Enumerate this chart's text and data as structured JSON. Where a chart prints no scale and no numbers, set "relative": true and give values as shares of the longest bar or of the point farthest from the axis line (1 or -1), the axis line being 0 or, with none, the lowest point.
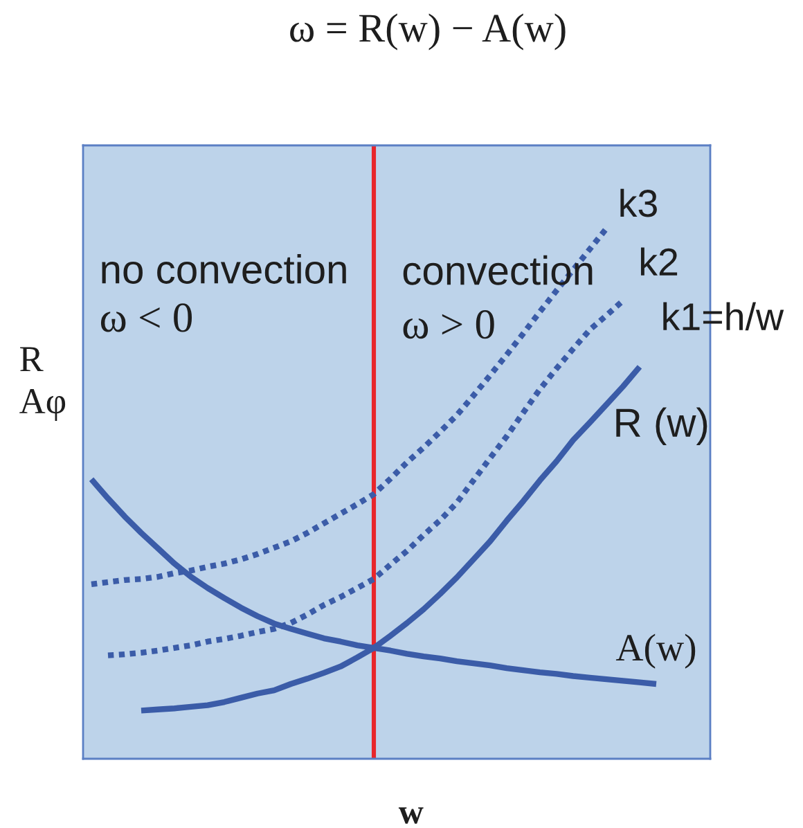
{
  "chart_data": {
    "type": "line",
    "relative": true,
    "title": "ω = R(w) − A(w)",
    "xlabel": "w",
    "ylabel": "R\nAφ",
    "categories": [
      null,
      null,
      null,
      null,
      null,
      null,
      null,
      null,
      null,
      null,
      null,
      null,
      null,
      null,
      null,
      null,
      null,
      null,
      null,
      null,
      null,
      null,
      null,
      null,
      null,
      null,
      null,
      null,
      null,
      null,
      null,
      null,
      null,
      null,
      null,
      null,
      null,
      null
    ],
    "series": [
      {
        "name": "k3",
        "color": "#3b5ca8",
        "line_style": "dotted",
        "values": [
          0.329,
          0.333,
          0.337,
          0.339,
          0.343,
          0.35,
          0.355,
          0.362,
          0.368,
          0.376,
          0.386,
          0.398,
          0.41,
          0.426,
          0.444,
          0.462,
          0.48,
          0.499,
          0.528,
          0.559,
          0.587,
          0.617,
          0.648,
          0.685,
          0.723,
          0.762,
          0.802,
          0.843,
          0.883,
          0.922,
          0.961,
          1.0,
          null,
          null,
          null,
          null,
          null,
          null
        ]
      },
      {
        "name": "k2",
        "color": "#3b5ca8",
        "line_style": "dotted",
        "values": [
          null,
          0.195,
          0.197,
          0.2,
          0.204,
          0.209,
          0.214,
          0.221,
          0.226,
          0.232,
          0.239,
          0.245,
          0.256,
          0.272,
          0.29,
          0.305,
          0.322,
          0.339,
          0.366,
          0.392,
          0.422,
          0.45,
          0.483,
          0.525,
          0.567,
          0.608,
          0.653,
          0.697,
          0.736,
          0.773,
          0.809,
          0.836,
          0.864,
          null,
          null,
          null,
          null,
          null
        ]
      },
      {
        "name": "k1=h/w",
        "color": "#3b5ca8",
        "line_style": "solid",
        "values": [
          null,
          null,
          null,
          0.091,
          0.093,
          0.095,
          0.098,
          0.101,
          0.107,
          0.115,
          0.123,
          0.129,
          0.141,
          0.151,
          0.162,
          0.174,
          0.191,
          0.209,
          0.232,
          0.256,
          0.282,
          0.311,
          0.342,
          0.376,
          0.41,
          0.449,
          0.486,
          0.525,
          0.561,
          0.601,
          0.634,
          0.668,
          0.702,
          0.739,
          null,
          null,
          null,
          null
        ]
      },
      {
        "name": "A(w)",
        "color": "#3b5ca8",
        "line_style": "solid",
        "values": [
          0.527,
          0.491,
          0.457,
          0.426,
          0.397,
          0.368,
          0.343,
          0.322,
          0.303,
          0.285,
          0.269,
          0.255,
          0.245,
          0.236,
          0.227,
          0.221,
          0.214,
          0.209,
          0.204,
          0.198,
          0.193,
          0.189,
          0.184,
          0.18,
          0.176,
          0.171,
          0.167,
          0.163,
          0.16,
          0.156,
          0.153,
          0.15,
          0.147,
          0.144,
          0.141,
          null,
          null,
          null
        ]
      }
    ],
    "annotations": [
      "no convection",
      "ω < 0",
      "convection",
      "ω > 0",
      "R (w)"
    ]
  }
}
